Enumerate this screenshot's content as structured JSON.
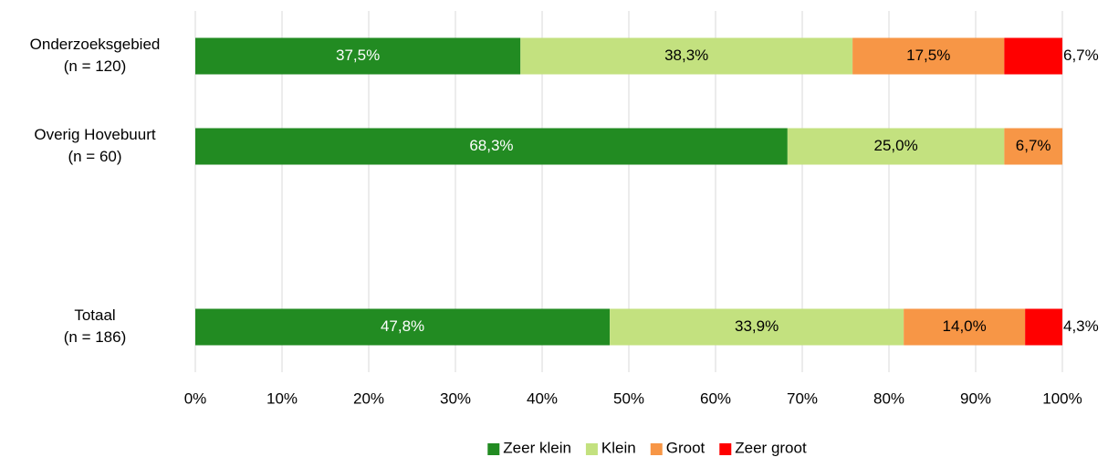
{
  "chart_data": {
    "type": "stacked-barh",
    "categories": [
      [
        "Onderzoeksgebied",
        "(n = 120)"
      ],
      [
        "Overig Hovebuurt",
        "(n = 60)"
      ],
      null,
      [
        "Totaal",
        "(n = 186)"
      ]
    ],
    "series": [
      {
        "name": "Zeer klein",
        "color": "#228b22",
        "label_color": "#ffffff",
        "values": [
          37.5,
          68.3,
          null,
          47.8
        ],
        "value_labels": [
          "37,5%",
          "68,3%",
          null,
          "47,8%"
        ]
      },
      {
        "name": "Klein",
        "color": "#c3e17f",
        "label_color": "#000000",
        "values": [
          38.3,
          25.0,
          null,
          33.9
        ],
        "value_labels": [
          "38,3%",
          "25,0%",
          null,
          "33,9%"
        ]
      },
      {
        "name": "Groot",
        "color": "#f79646",
        "label_color": "#000000",
        "values": [
          17.5,
          6.7,
          null,
          14.0
        ],
        "value_labels": [
          "17,5%",
          "6,7%",
          null,
          "14,0%"
        ]
      },
      {
        "name": "Zeer groot",
        "color": "#ff0000",
        "label_color": "#000000",
        "values": [
          6.7,
          null,
          null,
          4.3
        ],
        "value_labels": [
          "6,7%",
          null,
          null,
          "4,3%"
        ]
      }
    ],
    "xlim": [
      0,
      100
    ],
    "xticks": [
      {
        "value": 0,
        "label": "0%"
      },
      {
        "value": 10,
        "label": "10%"
      },
      {
        "value": 20,
        "label": "20%"
      },
      {
        "value": 30,
        "label": "30%"
      },
      {
        "value": 40,
        "label": "40%"
      },
      {
        "value": 50,
        "label": "50%"
      },
      {
        "value": 60,
        "label": "60%"
      },
      {
        "value": 70,
        "label": "70%"
      },
      {
        "value": 80,
        "label": "80%"
      },
      {
        "value": 90,
        "label": "90%"
      },
      {
        "value": 100,
        "label": "100%"
      }
    ],
    "grid": true,
    "legend": "bottom"
  }
}
